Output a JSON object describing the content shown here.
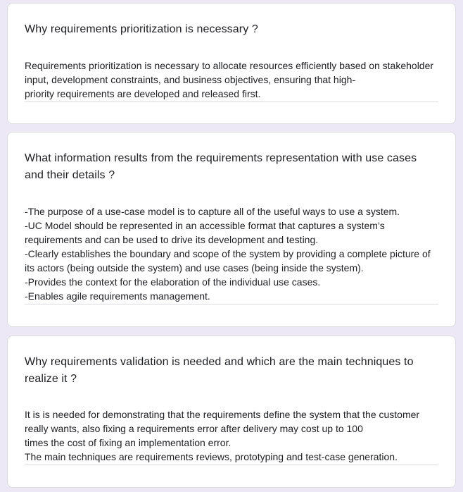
{
  "questions": [
    {
      "question": "Why requirements prioritization is necessary ?",
      "answer": "Requirements prioritization is necessary to allocate resources efficiently based on stakeholder input, development constraints, and business objectives, ensuring that high-\npriority requirements are developed and released first."
    },
    {
      "question": "What information results from the requirements representation with use cases and their details ?",
      "answer": "-The purpose of a use-case model is to capture all of the useful ways to use a system.\n-UC Model should be represented in an accessible format that captures a system’s requirements and can be used to drive its development and testing.\n-Clearly establishes the boundary and scope of the system by providing a complete picture of its actors (being outside the system) and use cases (being inside the system).\n-Provides the context for the elaboration of the individual use cases.\n-Enables agile requirements management."
    },
    {
      "question": "Why requirements validation is needed and which are the main techniques to realize it ?",
      "answer": "It is is needed for demonstrating that the requirements define the system that the customer really wants, also fixing a requirements error after delivery may cost up to 100\ntimes the cost of fixing an implementation error.\nThe main techniques are requirements reviews, prototyping and test-case generation."
    }
  ]
}
